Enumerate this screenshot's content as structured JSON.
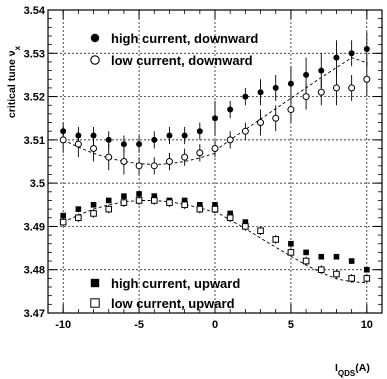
{
  "chart_data": {
    "type": "scatter",
    "ylabel": "critical tune ν",
    "ylabel_sub": "x",
    "xlabel": "I",
    "xlabel_sub": "QDS",
    "xlabel_unit": "(A)",
    "xlim": [
      -11,
      11
    ],
    "ylim": [
      3.47,
      3.54
    ],
    "x_ticks": [
      -10,
      -5,
      0,
      5,
      10
    ],
    "y_ticks": [
      3.47,
      3.48,
      3.49,
      3.5,
      3.51,
      3.52,
      3.53,
      3.54
    ],
    "y_tick_labels": [
      "3.47",
      "3.48",
      "3.49",
      "3.5",
      "3.51",
      "3.52",
      "3.53",
      "3.54"
    ],
    "grid": true,
    "series": [
      {
        "name": "high current, downward",
        "marker": "filled-circle",
        "x": [
          -10,
          -9,
          -8,
          -7,
          -6,
          -5,
          -4,
          -3,
          -2,
          -1,
          0,
          1,
          2,
          3,
          4,
          5,
          6,
          7,
          8,
          9,
          10
        ],
        "y": [
          3.512,
          3.511,
          3.511,
          3.51,
          3.509,
          3.509,
          3.51,
          3.511,
          3.511,
          3.512,
          3.515,
          3.517,
          3.52,
          3.521,
          3.522,
          3.523,
          3.525,
          3.526,
          3.529,
          3.53,
          3.531
        ],
        "err": [
          0.002,
          0.002,
          0.002,
          0.002,
          0.002,
          0.002,
          0.002,
          0.002,
          0.002,
          0.002,
          0.004,
          0.002,
          0.002,
          0.003,
          0.003,
          0.004,
          0.004,
          0.004,
          0.004,
          0.003,
          0.004
        ]
      },
      {
        "name": "low current,  downward",
        "marker": "open-circle",
        "x": [
          -10,
          -9,
          -8,
          -7,
          -6,
          -5,
          -4,
          -3,
          -2,
          -1,
          0,
          1,
          2,
          3,
          4,
          5,
          6,
          7,
          8,
          9,
          10
        ],
        "y": [
          3.51,
          3.509,
          3.508,
          3.506,
          3.505,
          3.504,
          3.504,
          3.505,
          3.506,
          3.507,
          3.508,
          3.51,
          3.512,
          3.514,
          3.515,
          3.517,
          3.52,
          3.521,
          3.522,
          3.522,
          3.524
        ],
        "err": [
          0.003,
          0.003,
          0.003,
          0.003,
          0.003,
          0.002,
          0.002,
          0.002,
          0.002,
          0.002,
          0.002,
          0.002,
          0.002,
          0.003,
          0.003,
          0.003,
          0.003,
          0.003,
          0.004,
          0.003,
          0.004
        ]
      },
      {
        "name": "high current, upward",
        "marker": "filled-square",
        "x": [
          -10,
          -9,
          -8,
          -7,
          -6,
          -5,
          -4,
          -3,
          -2,
          -1,
          0,
          1,
          2,
          3,
          4,
          5,
          6,
          7,
          8,
          9,
          10
        ],
        "y": [
          3.4925,
          3.494,
          3.495,
          3.496,
          3.497,
          3.4975,
          3.497,
          3.496,
          3.496,
          3.495,
          3.495,
          3.493,
          3.491,
          3.489,
          3.487,
          3.486,
          3.484,
          3.483,
          3.483,
          3.482,
          3.48
        ],
        "err": [
          0.0006,
          0.0006,
          0.0006,
          0.0006,
          0.0006,
          0.0006,
          0.0006,
          0.0006,
          0.0006,
          0.0006,
          0.0006,
          0.0006,
          0.0006,
          0.0006,
          0.0006,
          0.0006,
          0.0006,
          0.0006,
          0.0006,
          0.0006,
          0.0006
        ]
      },
      {
        "name": "low current,  upward",
        "marker": "open-square",
        "x": [
          -10,
          -9,
          -8,
          -7,
          -6,
          -5,
          -4,
          -3,
          -2,
          -1,
          0,
          1,
          2,
          3,
          4,
          5,
          6,
          7,
          8,
          9,
          10
        ],
        "y": [
          3.491,
          3.492,
          3.493,
          3.494,
          3.4955,
          3.496,
          3.496,
          3.4955,
          3.495,
          3.494,
          3.494,
          3.492,
          3.49,
          3.489,
          3.487,
          3.484,
          3.482,
          3.48,
          3.479,
          3.478,
          3.478
        ],
        "err": [
          0.001,
          0.001,
          0.001,
          0.001,
          0.001,
          0.001,
          0.001,
          0.001,
          0.001,
          0.001,
          0.001,
          0.001,
          0.001,
          0.001,
          0.001,
          0.001,
          0.001,
          0.001,
          0.001,
          0.001,
          0.001
        ]
      }
    ],
    "fits": [
      {
        "segment": "downward-left",
        "x": [
          -10,
          -9,
          -8,
          -7,
          -6,
          -5,
          -4,
          -3,
          -2,
          -1,
          0
        ],
        "y": [
          3.51,
          3.5083,
          3.5069,
          3.5058,
          3.505,
          3.5045,
          3.5043,
          3.5045,
          3.505,
          3.5058,
          3.5069
        ]
      },
      {
        "segment": "downward-right",
        "x": [
          0,
          1,
          2,
          3,
          4,
          5,
          6,
          7,
          8,
          9,
          10
        ],
        "y": [
          3.5075,
          3.51,
          3.5124,
          3.5148,
          3.5172,
          3.5196,
          3.522,
          3.5244,
          3.5267,
          3.529,
          3.5278
        ]
      },
      {
        "segment": "upward-left",
        "x": [
          -10,
          -9,
          -8,
          -7,
          -6,
          -5,
          -4,
          -3,
          -2,
          -1,
          0
        ],
        "y": [
          3.491,
          3.4926,
          3.494,
          3.495,
          3.4957,
          3.496,
          3.496,
          3.4957,
          3.4951,
          3.4943,
          3.4932
        ]
      },
      {
        "segment": "upward-right",
        "x": [
          0,
          1,
          2,
          3,
          4,
          5,
          6,
          7,
          8,
          9,
          10
        ],
        "y": [
          3.4935,
          3.4915,
          3.4895,
          3.4873,
          3.4852,
          3.4831,
          3.4811,
          3.4793,
          3.4779,
          3.4772,
          3.477
        ]
      }
    ]
  }
}
